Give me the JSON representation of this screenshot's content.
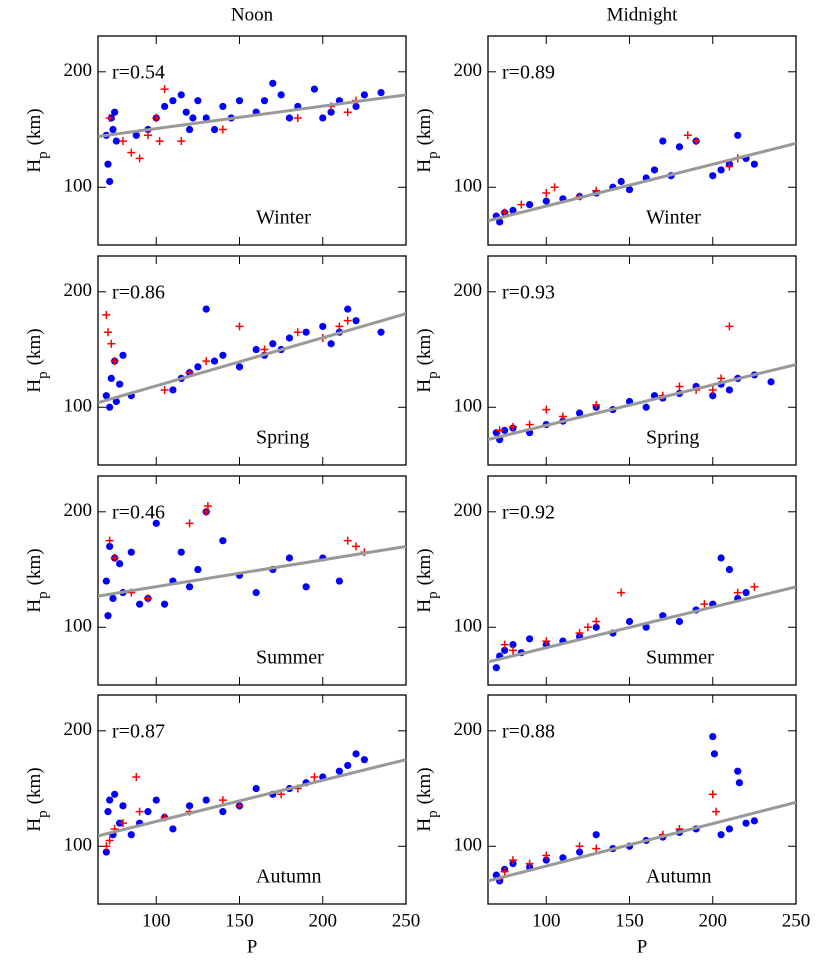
{
  "column_titles": [
    "Noon",
    "Midnight"
  ],
  "chart_data": [
    {
      "type": "scatter",
      "column": 0,
      "row": 0,
      "annotation": "r=0.54",
      "season": "Winter",
      "ylabel": {
        "main": "H",
        "sub": "p",
        "unit": "(km)"
      },
      "xlim": [
        65,
        250
      ],
      "ylim": [
        50,
        231
      ],
      "xticks": [
        100,
        150,
        200,
        250
      ],
      "yticks": [
        100,
        200
      ],
      "xtick_labels": false,
      "series": [
        {
          "color": "#0000ff",
          "marker": "circle",
          "x": [
            70,
            71,
            72,
            73,
            74,
            75,
            76,
            88,
            95,
            100,
            105,
            110,
            115,
            118,
            120,
            122,
            125,
            130,
            135,
            140,
            145,
            150,
            160,
            165,
            170,
            175,
            180,
            185,
            195,
            200,
            205,
            210,
            220,
            225,
            235
          ],
          "values": [
            145,
            120,
            105,
            160,
            150,
            165,
            140,
            145,
            150,
            160,
            170,
            175,
            180,
            165,
            150,
            160,
            175,
            160,
            150,
            170,
            160,
            175,
            165,
            175,
            190,
            180,
            160,
            170,
            185,
            160,
            165,
            175,
            170,
            180,
            182
          ]
        },
        {
          "color": "#ff0000",
          "marker": "plus",
          "x": [
            72,
            80,
            85,
            90,
            95,
            100,
            102,
            105,
            115,
            140,
            185,
            205,
            215,
            220
          ],
          "values": [
            160,
            140,
            130,
            125,
            145,
            160,
            140,
            185,
            140,
            150,
            160,
            170,
            165,
            175
          ]
        }
      ],
      "fit": {
        "color": "#999999",
        "x": [
          65,
          250
        ],
        "values": [
          144,
          180
        ]
      }
    },
    {
      "type": "scatter",
      "column": 1,
      "row": 0,
      "annotation": "r=0.89",
      "season": "Winter",
      "ylabel": {
        "main": "H",
        "sub": "p",
        "unit": "(km)"
      },
      "xlim": [
        65,
        250
      ],
      "ylim": [
        50,
        231
      ],
      "xticks": [
        100,
        150,
        200,
        250
      ],
      "yticks": [
        100,
        200
      ],
      "xtick_labels": false,
      "series": [
        {
          "color": "#0000ff",
          "marker": "circle",
          "x": [
            70,
            72,
            75,
            80,
            90,
            100,
            110,
            120,
            130,
            140,
            145,
            150,
            160,
            165,
            170,
            175,
            180,
            190,
            200,
            205,
            210,
            215,
            220,
            225
          ],
          "values": [
            75,
            70,
            78,
            80,
            85,
            88,
            90,
            92,
            95,
            100,
            105,
            98,
            108,
            115,
            140,
            110,
            135,
            140,
            110,
            115,
            120,
            145,
            125,
            120
          ]
        },
        {
          "color": "#ff0000",
          "marker": "plus",
          "x": [
            75,
            85,
            100,
            105,
            120,
            130,
            185,
            190,
            210,
            215
          ],
          "values": [
            78,
            85,
            95,
            100,
            92,
            97,
            145,
            140,
            118,
            125
          ]
        }
      ],
      "fit": {
        "color": "#999999",
        "x": [
          65,
          250
        ],
        "values": [
          71,
          138
        ]
      }
    },
    {
      "type": "scatter",
      "column": 0,
      "row": 1,
      "annotation": "r=0.86",
      "season": "Spring",
      "ylabel": {
        "main": "H",
        "sub": "p",
        "unit": "(km)"
      },
      "xlim": [
        65,
        250
      ],
      "ylim": [
        50,
        231
      ],
      "xticks": [
        100,
        150,
        200,
        250
      ],
      "yticks": [
        100,
        200
      ],
      "xtick_labels": false,
      "series": [
        {
          "color": "#0000ff",
          "marker": "circle",
          "x": [
            70,
            72,
            73,
            75,
            76,
            78,
            80,
            85,
            110,
            115,
            120,
            125,
            130,
            135,
            140,
            150,
            160,
            165,
            170,
            175,
            180,
            190,
            200,
            205,
            210,
            215,
            220,
            235
          ],
          "values": [
            110,
            100,
            125,
            140,
            105,
            120,
            145,
            110,
            115,
            125,
            130,
            135,
            185,
            140,
            145,
            135,
            150,
            145,
            155,
            150,
            160,
            165,
            170,
            155,
            165,
            185,
            175,
            165
          ]
        },
        {
          "color": "#ff0000",
          "marker": "plus",
          "x": [
            70,
            71,
            73,
            75,
            105,
            120,
            130,
            150,
            165,
            185,
            200,
            210,
            215
          ],
          "values": [
            180,
            165,
            155,
            140,
            115,
            130,
            140,
            170,
            150,
            165,
            160,
            170,
            175
          ]
        }
      ],
      "fit": {
        "color": "#999999",
        "x": [
          65,
          250
        ],
        "values": [
          104,
          181
        ]
      }
    },
    {
      "type": "scatter",
      "column": 1,
      "row": 1,
      "annotation": "r=0.93",
      "season": "Spring",
      "ylabel": {
        "main": "H",
        "sub": "p",
        "unit": "(km)"
      },
      "xlim": [
        65,
        250
      ],
      "ylim": [
        50,
        231
      ],
      "xticks": [
        100,
        150,
        200,
        250
      ],
      "yticks": [
        100,
        200
      ],
      "xtick_labels": false,
      "series": [
        {
          "color": "#0000ff",
          "marker": "circle",
          "x": [
            70,
            72,
            75,
            80,
            90,
            100,
            110,
            120,
            130,
            140,
            150,
            160,
            165,
            170,
            180,
            190,
            200,
            205,
            210,
            215,
            225,
            235
          ],
          "values": [
            78,
            72,
            80,
            82,
            78,
            85,
            88,
            95,
            100,
            98,
            105,
            100,
            110,
            108,
            112,
            118,
            110,
            120,
            115,
            125,
            128,
            122
          ]
        },
        {
          "color": "#ff0000",
          "marker": "plus",
          "x": [
            72,
            80,
            90,
            100,
            110,
            130,
            170,
            180,
            190,
            200,
            205,
            210
          ],
          "values": [
            80,
            83,
            85,
            98,
            92,
            102,
            110,
            118,
            115,
            115,
            125,
            170
          ]
        }
      ],
      "fit": {
        "color": "#999999",
        "x": [
          65,
          250
        ],
        "values": [
          72,
          137
        ]
      }
    },
    {
      "type": "scatter",
      "column": 0,
      "row": 2,
      "annotation": "r=0.46",
      "season": "Summer",
      "ylabel": {
        "main": "H",
        "sub": "p",
        "unit": "(km)"
      },
      "xlim": [
        65,
        250
      ],
      "ylim": [
        50,
        231
      ],
      "xticks": [
        100,
        150,
        200,
        250
      ],
      "yticks": [
        100,
        200
      ],
      "xtick_labels": false,
      "series": [
        {
          "color": "#0000ff",
          "marker": "circle",
          "x": [
            70,
            71,
            72,
            74,
            75,
            78,
            80,
            85,
            90,
            95,
            100,
            105,
            110,
            115,
            120,
            125,
            130,
            140,
            150,
            160,
            170,
            180,
            190,
            200,
            210
          ],
          "values": [
            140,
            110,
            170,
            125,
            160,
            155,
            130,
            165,
            120,
            125,
            190,
            120,
            140,
            165,
            135,
            150,
            200,
            175,
            145,
            130,
            150,
            160,
            135,
            160,
            140
          ]
        },
        {
          "color": "#ff0000",
          "marker": "plus",
          "x": [
            72,
            75,
            85,
            95,
            120,
            130,
            131,
            215,
            220,
            225
          ],
          "values": [
            175,
            160,
            130,
            125,
            190,
            200,
            205,
            175,
            170,
            165
          ]
        }
      ],
      "fit": {
        "color": "#999999",
        "x": [
          65,
          250
        ],
        "values": [
          127,
          170
        ]
      }
    },
    {
      "type": "scatter",
      "column": 1,
      "row": 2,
      "annotation": "r=0.92",
      "season": "Summer",
      "ylabel": {
        "main": "H",
        "sub": "p",
        "unit": "(km)"
      },
      "xlim": [
        65,
        250
      ],
      "ylim": [
        50,
        231
      ],
      "xticks": [
        100,
        150,
        200,
        250
      ],
      "yticks": [
        100,
        200
      ],
      "xtick_labels": false,
      "series": [
        {
          "color": "#0000ff",
          "marker": "circle",
          "x": [
            70,
            72,
            75,
            80,
            85,
            90,
            100,
            110,
            120,
            130,
            140,
            150,
            160,
            170,
            180,
            190,
            200,
            205,
            210,
            215,
            220
          ],
          "values": [
            65,
            75,
            80,
            85,
            78,
            90,
            85,
            88,
            92,
            100,
            95,
            105,
            100,
            110,
            105,
            115,
            120,
            160,
            150,
            125,
            130
          ]
        },
        {
          "color": "#ff0000",
          "marker": "plus",
          "x": [
            75,
            80,
            100,
            120,
            125,
            130,
            145,
            195,
            215,
            225
          ],
          "values": [
            85,
            80,
            88,
            95,
            100,
            105,
            130,
            120,
            130,
            135
          ]
        }
      ],
      "fit": {
        "color": "#999999",
        "x": [
          65,
          250
        ],
        "values": [
          70,
          135
        ]
      }
    },
    {
      "type": "scatter",
      "column": 0,
      "row": 3,
      "annotation": "r=0.87",
      "season": "Autumn",
      "ylabel": {
        "main": "H",
        "sub": "p",
        "unit": "(km)"
      },
      "xlabel": "P",
      "xlim": [
        65,
        250
      ],
      "ylim": [
        50,
        231
      ],
      "xticks": [
        100,
        150,
        200,
        250
      ],
      "yticks": [
        100,
        200
      ],
      "xtick_labels": true,
      "series": [
        {
          "color": "#0000ff",
          "marker": "circle",
          "x": [
            70,
            71,
            72,
            74,
            75,
            78,
            80,
            85,
            90,
            95,
            100,
            105,
            110,
            120,
            130,
            140,
            150,
            160,
            170,
            180,
            190,
            200,
            210,
            215,
            220,
            225
          ],
          "values": [
            95,
            130,
            140,
            110,
            145,
            120,
            135,
            110,
            120,
            130,
            140,
            125,
            115,
            135,
            140,
            130,
            135,
            150,
            145,
            150,
            155,
            160,
            165,
            170,
            180,
            175
          ]
        },
        {
          "color": "#ff0000",
          "marker": "plus",
          "x": [
            70,
            72,
            75,
            80,
            88,
            90,
            105,
            120,
            140,
            150,
            175,
            185,
            195
          ],
          "values": [
            100,
            105,
            115,
            120,
            160,
            130,
            125,
            130,
            140,
            135,
            145,
            150,
            160
          ]
        }
      ],
      "fit": {
        "color": "#999999",
        "x": [
          65,
          250
        ],
        "values": [
          109,
          175
        ]
      }
    },
    {
      "type": "scatter",
      "column": 1,
      "row": 3,
      "annotation": "r=0.88",
      "season": "Autumn",
      "ylabel": {
        "main": "H",
        "sub": "p",
        "unit": "(km)"
      },
      "xlabel": "P",
      "xlim": [
        65,
        250
      ],
      "ylim": [
        50,
        231
      ],
      "xticks": [
        100,
        150,
        200,
        250
      ],
      "yticks": [
        100,
        200
      ],
      "xtick_labels": true,
      "series": [
        {
          "color": "#0000ff",
          "marker": "circle",
          "x": [
            70,
            72,
            75,
            80,
            90,
            100,
            110,
            120,
            130,
            140,
            150,
            160,
            170,
            180,
            190,
            200,
            201,
            205,
            210,
            215,
            216,
            220,
            225
          ],
          "values": [
            75,
            70,
            80,
            85,
            82,
            88,
            90,
            95,
            110,
            98,
            100,
            105,
            108,
            112,
            115,
            195,
            180,
            110,
            115,
            165,
            155,
            120,
            122
          ]
        },
        {
          "color": "#ff0000",
          "marker": "plus",
          "x": [
            72,
            75,
            80,
            90,
            100,
            120,
            130,
            170,
            180,
            200,
            202
          ],
          "values": [
            72,
            78,
            88,
            85,
            92,
            100,
            98,
            110,
            115,
            145,
            130
          ]
        }
      ],
      "fit": {
        "color": "#999999",
        "x": [
          65,
          250
        ],
        "values": [
          70,
          138
        ]
      }
    }
  ]
}
